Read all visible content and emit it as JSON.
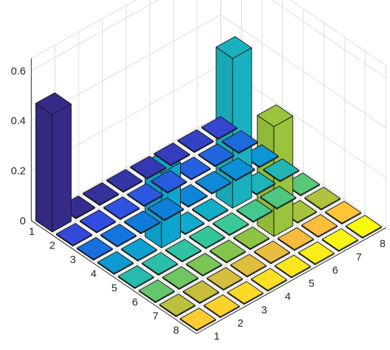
{
  "chart_data": {
    "type": "bar3",
    "title": "",
    "xlabel": "",
    "ylabel": "",
    "zlabel": "",
    "row_labels": [
      "1",
      "2",
      "3",
      "4",
      "5",
      "6",
      "7",
      "8"
    ],
    "col_labels": [
      "1",
      "2",
      "3",
      "4",
      "5",
      "6",
      "7",
      "8"
    ],
    "z_ticks": [
      "0",
      "0.2",
      "0.4",
      "0.6"
    ],
    "zlim": [
      0,
      0.6
    ],
    "grid": true,
    "colormap": "parula",
    "values": [
      [
        0.47,
        0,
        0,
        0,
        0,
        0,
        0,
        0
      ],
      [
        0,
        0,
        0,
        0,
        0,
        0,
        0,
        0
      ],
      [
        0,
        0,
        0,
        0,
        0,
        0,
        0,
        0
      ],
      [
        0,
        0,
        0.3,
        0,
        0,
        0.6,
        0,
        0
      ],
      [
        0,
        0,
        0,
        0,
        0,
        0,
        0,
        0
      ],
      [
        0,
        0,
        0,
        0,
        0,
        0.44,
        0,
        0
      ],
      [
        0,
        0,
        0,
        0,
        0,
        0,
        0,
        0
      ],
      [
        0,
        0,
        0,
        0,
        0,
        0,
        0,
        0
      ]
    ],
    "values_orientation": "values[row][col]; row = left axis label, col = right axis label"
  }
}
